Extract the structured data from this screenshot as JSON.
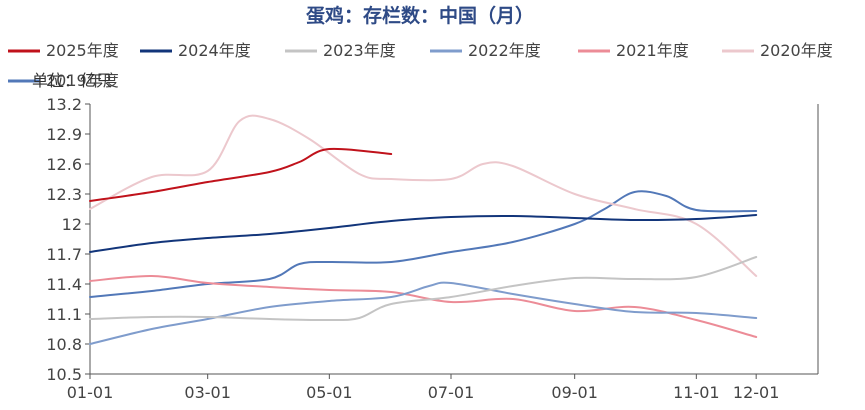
{
  "chart_data": {
    "type": "line",
    "title": "蛋鸡：存栏数：中国（月）",
    "unit_label": "单位：亿只",
    "x_ticks": [
      "01-01",
      "03-01",
      "05-01",
      "07-01",
      "09-01",
      "11-01",
      "12-01"
    ],
    "x_tick_days": [
      0,
      59,
      120,
      181,
      243,
      304,
      334
    ],
    "ylim": [
      10.5,
      13.2
    ],
    "y_ticks": [
      10.5,
      10.8,
      11.1,
      11.4,
      11.7,
      12,
      12.3,
      12.6,
      12.9,
      13.2
    ],
    "y_tick_labels": [
      "10.5",
      "10.8",
      "11.1",
      "11.4",
      "11.7",
      "12",
      "12.3",
      "12.6",
      "12.9",
      "13.2"
    ],
    "series": [
      {
        "name": "2025年度",
        "color": "#c0121b",
        "x": [
          0,
          31,
          59,
          90,
          105,
          120,
          151
        ],
        "values": [
          12.23,
          12.32,
          12.42,
          12.52,
          12.62,
          12.75,
          12.7
        ]
      },
      {
        "name": "2024年度",
        "color": "#12357a",
        "x": [
          0,
          31,
          59,
          90,
          120,
          151,
          181,
          212,
          243,
          273,
          304,
          334
        ],
        "values": [
          11.72,
          11.81,
          11.86,
          11.9,
          11.96,
          12.03,
          12.07,
          12.08,
          12.06,
          12.04,
          12.05,
          12.09
        ]
      },
      {
        "name": "2023年度",
        "color": "#c4c4c4",
        "x": [
          0,
          31,
          59,
          90,
          120,
          135,
          151,
          181,
          212,
          243,
          273,
          304,
          334
        ],
        "values": [
          11.05,
          11.07,
          11.07,
          11.05,
          11.04,
          11.06,
          11.2,
          11.27,
          11.38,
          11.46,
          11.45,
          11.47,
          11.67
        ]
      },
      {
        "name": "2022年度",
        "color": "#7f9ccc",
        "x": [
          0,
          31,
          59,
          90,
          120,
          151,
          170,
          181,
          212,
          243,
          273,
          304,
          334
        ],
        "values": [
          10.8,
          10.95,
          11.05,
          11.17,
          11.23,
          11.27,
          11.38,
          11.41,
          11.3,
          11.2,
          11.12,
          11.11,
          11.06
        ]
      },
      {
        "name": "2021年度",
        "color": "#ec8c97",
        "x": [
          0,
          31,
          59,
          90,
          120,
          151,
          181,
          212,
          243,
          273,
          304,
          334
        ],
        "values": [
          11.43,
          11.48,
          11.41,
          11.37,
          11.34,
          11.32,
          11.22,
          11.25,
          11.13,
          11.17,
          11.04,
          10.87
        ]
      },
      {
        "name": "2020年度",
        "color": "#ecc8cd",
        "x": [
          0,
          31,
          59,
          75,
          90,
          110,
          135,
          151,
          181,
          197,
          212,
          243,
          273,
          304,
          334
        ],
        "values": [
          12.15,
          12.47,
          12.53,
          13.03,
          13.05,
          12.85,
          12.5,
          12.45,
          12.45,
          12.6,
          12.58,
          12.3,
          12.15,
          12.0,
          11.48
        ]
      },
      {
        "name": "2019年度",
        "color": "#5278b8",
        "x": [
          0,
          31,
          59,
          90,
          105,
          120,
          151,
          181,
          212,
          243,
          258,
          273,
          289,
          304,
          334
        ],
        "values": [
          11.27,
          11.33,
          11.4,
          11.45,
          11.6,
          11.62,
          11.62,
          11.72,
          11.82,
          12.0,
          12.15,
          12.32,
          12.28,
          12.14,
          12.13
        ]
      }
    ]
  }
}
